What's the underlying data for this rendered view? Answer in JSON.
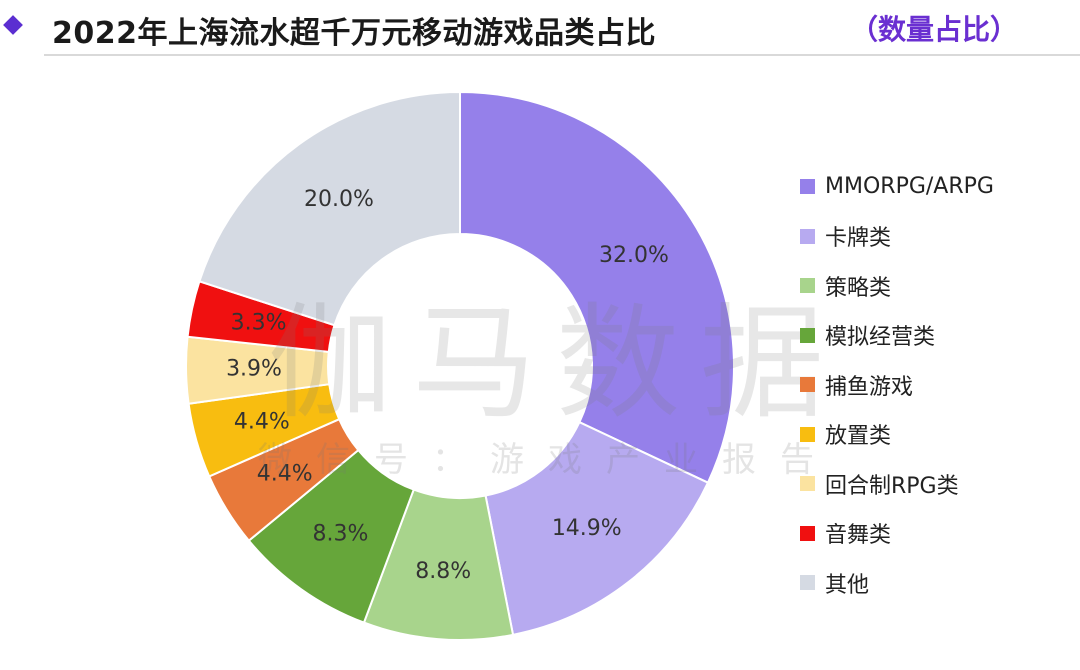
{
  "header": {
    "title": "2022年上海流水超千万元移动游戏品类占比",
    "subtitle": "（数量占比）"
  },
  "watermark": {
    "main": "伽马数据",
    "sub": "微信号：游戏产业报告"
  },
  "chart_data": {
    "type": "pie",
    "donut": true,
    "title": "2022年上海流水超千万元移动游戏品类占比",
    "legend_position": "right",
    "slices": [
      {
        "label": "MMORPG/ARPG",
        "value": 32.0,
        "display": "32.0%",
        "color": "#9580ea"
      },
      {
        "label": "卡牌类",
        "value": 14.9,
        "display": "14.9%",
        "color": "#b7aaf0"
      },
      {
        "label": "策略类",
        "value": 8.8,
        "display": "8.8%",
        "color": "#a8d48c"
      },
      {
        "label": "模拟经营类",
        "value": 8.3,
        "display": "8.3%",
        "color": "#66a63a"
      },
      {
        "label": "捕鱼游戏",
        "value": 4.4,
        "display": "4.4%",
        "color": "#e8793a"
      },
      {
        "label": "放置类",
        "value": 4.4,
        "display": "4.4%",
        "color": "#f8bd10"
      },
      {
        "label": "回合制RPG类",
        "value": 3.9,
        "display": "3.9%",
        "color": "#fbe3a0"
      },
      {
        "label": "音舞类",
        "value": 3.3,
        "display": "3.3%",
        "color": "#f01010"
      },
      {
        "label": "其他",
        "value": 20.0,
        "display": "20.0%",
        "color": "#d5dae3"
      }
    ]
  }
}
